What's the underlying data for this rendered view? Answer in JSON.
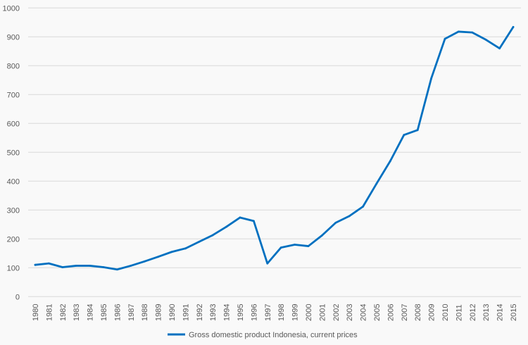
{
  "chart_data": {
    "type": "line",
    "title": "",
    "xlabel": "",
    "ylabel": "",
    "ylim": [
      0,
      1000
    ],
    "yticks": [
      0,
      100,
      200,
      300,
      400,
      500,
      600,
      700,
      800,
      900,
      1000
    ],
    "grid": true,
    "legend_position": "bottom",
    "x": [
      "1980",
      "1981",
      "1982",
      "1983",
      "1984",
      "1985",
      "1986",
      "1987",
      "1988",
      "1989",
      "1990",
      "1991",
      "1992",
      "1993",
      "1994",
      "1995",
      "1996",
      "1997",
      "1998",
      "1999",
      "2000",
      "2001",
      "2002",
      "2003",
      "2004",
      "2005",
      "2006",
      "2007",
      "2008",
      "2009",
      "2010",
      "2011",
      "2012",
      "2013",
      "2014",
      "2015"
    ],
    "series": [
      {
        "name": "Gross domestic product Indonesia, current prices",
        "color": "#0070c0",
        "values": [
          110,
          115,
          102,
          107,
          107,
          102,
          94,
          107,
          122,
          138,
          155,
          167,
          190,
          213,
          242,
          274,
          262,
          115,
          170,
          180,
          175,
          212,
          256,
          279,
          312,
          392,
          470,
          560,
          577,
          756,
          893,
          918,
          915,
          890,
          860,
          934
        ]
      }
    ]
  }
}
